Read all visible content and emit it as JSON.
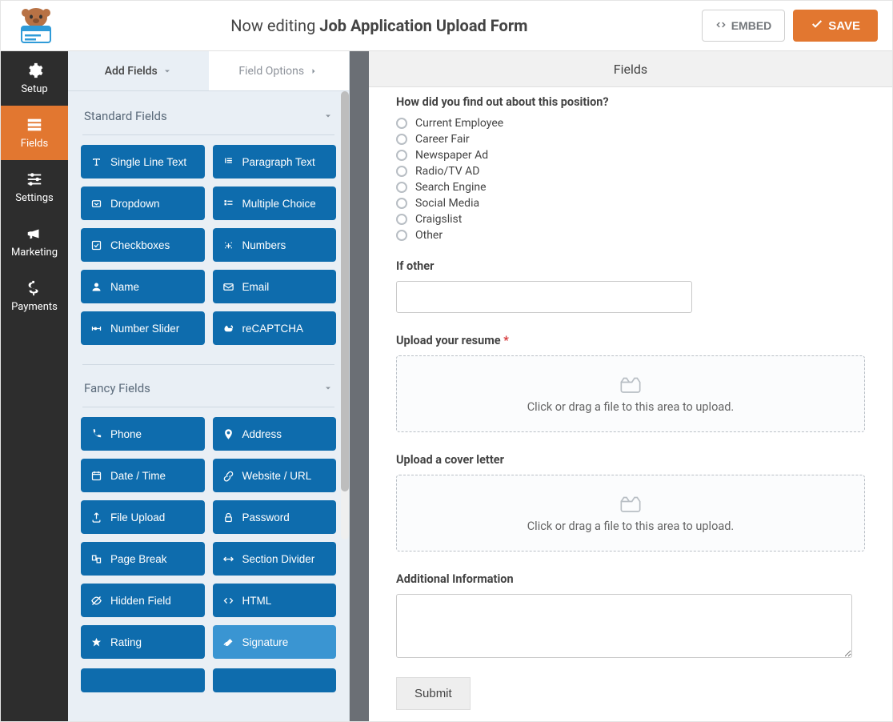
{
  "colors": {
    "accent_orange": "#e27730",
    "nav_dark": "#2d2d2d",
    "panel_bg": "#e9eff5",
    "field_btn": "#0e6cad",
    "field_btn_light": "#3a95d2",
    "required": "#d63638",
    "border": "#c9c9c9"
  },
  "header": {
    "prefix": "Now editing ",
    "form_name": "Job Application Upload Form",
    "embed": "EMBED",
    "save": "SAVE"
  },
  "vnav": {
    "setup": "Setup",
    "fields": "Fields",
    "settings": "Settings",
    "marketing": "Marketing",
    "payments": "Payments"
  },
  "panel": {
    "tab_add": "Add Fields",
    "tab_options": "Field Options",
    "section_standard": "Standard Fields",
    "section_fancy": "Fancy Fields",
    "standard": [
      "Single Line Text",
      "Paragraph Text",
      "Dropdown",
      "Multiple Choice",
      "Checkboxes",
      "Numbers",
      "Name",
      "Email",
      "Number Slider",
      "reCAPTCHA"
    ],
    "fancy": [
      "Phone",
      "Address",
      "Date / Time",
      "Website / URL",
      "File Upload",
      "Password",
      "Page Break",
      "Section Divider",
      "Hidden Field",
      "HTML",
      "Rating",
      "Signature"
    ]
  },
  "subhead": "Fields",
  "form": {
    "q_source": "How did you find out about this position?",
    "source_options": [
      "Current Employee",
      "Career Fair",
      "Newspaper Ad",
      "Radio/TV AD",
      "Search Engine",
      "Social Media",
      "Craigslist",
      "Other"
    ],
    "if_other": "If other",
    "upload_resume": "Upload your resume",
    "upload_cover": "Upload a cover letter",
    "upload_hint": "Click or drag a file to this area to upload.",
    "additional": "Additional Information",
    "submit": "Submit"
  }
}
